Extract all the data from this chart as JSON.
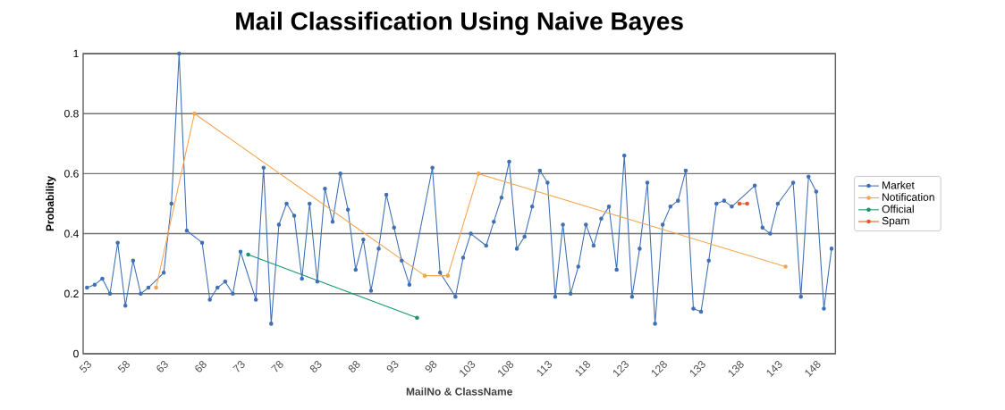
{
  "chart_data": {
    "type": "line",
    "title": "Mail Classification Using Naive Bayes",
    "xlabel": "MailNo & ClassName",
    "ylabel": "Probability",
    "categories": [
      "53",
      null,
      null,
      null,
      null,
      "58",
      null,
      null,
      null,
      null,
      "63",
      null,
      null,
      null,
      null,
      "68",
      null,
      null,
      null,
      null,
      "73",
      null,
      null,
      null,
      null,
      "78",
      null,
      null,
      null,
      null,
      "83",
      null,
      null,
      null,
      null,
      "88",
      null,
      null,
      null,
      null,
      "93",
      null,
      null,
      null,
      null,
      "98",
      null,
      null,
      null,
      null,
      "103",
      null,
      null,
      null,
      null,
      "108",
      null,
      null,
      null,
      null,
      "113",
      null,
      null,
      null,
      null,
      "118",
      null,
      null,
      null,
      null,
      "123",
      null,
      null,
      null,
      null,
      "128",
      null,
      null,
      null,
      null,
      "133",
      null,
      null,
      null,
      null,
      "138",
      null,
      null,
      null,
      null,
      "143",
      null,
      null,
      null,
      null,
      "148",
      null,
      null
    ],
    "series": [
      {
        "name": "Market",
        "color": "#3f6fb5",
        "values": [
          0.22,
          0.23,
          0.25,
          0.2,
          0.37,
          0.16,
          0.31,
          0.2,
          0.22,
          null,
          0.27,
          0.5,
          1.0,
          0.41,
          null,
          0.37,
          0.18,
          0.22,
          0.24,
          0.2,
          0.34,
          null,
          0.18,
          0.62,
          0.1,
          0.43,
          0.5,
          0.46,
          0.25,
          0.5,
          0.24,
          0.55,
          0.44,
          0.6,
          0.48,
          0.28,
          0.38,
          0.21,
          0.35,
          0.53,
          0.42,
          0.31,
          0.23,
          null,
          null,
          0.62,
          0.27,
          null,
          0.19,
          0.32,
          0.4,
          null,
          0.36,
          0.44,
          0.52,
          0.64,
          0.35,
          0.39,
          0.49,
          0.61,
          0.57,
          0.19,
          0.43,
          0.2,
          0.29,
          0.43,
          0.36,
          0.45,
          0.49,
          0.28,
          0.66,
          0.19,
          0.35,
          0.57,
          0.1,
          0.43,
          0.49,
          0.51,
          0.61,
          0.15,
          0.14,
          0.31,
          0.5,
          0.51,
          0.49,
          null,
          null,
          0.56,
          0.42,
          0.4,
          0.5,
          null,
          0.57,
          0.19,
          0.59,
          0.54,
          0.15,
          0.35
        ]
      },
      {
        "name": "Notification",
        "color": "#f5a34f",
        "values": [
          null,
          null,
          null,
          null,
          null,
          null,
          null,
          null,
          null,
          0.22,
          null,
          null,
          null,
          null,
          0.8,
          null,
          null,
          null,
          null,
          null,
          null,
          null,
          null,
          null,
          null,
          null,
          null,
          null,
          null,
          null,
          null,
          null,
          null,
          null,
          null,
          null,
          null,
          null,
          null,
          null,
          null,
          null,
          null,
          null,
          0.26,
          null,
          null,
          0.26,
          null,
          null,
          null,
          0.6,
          null,
          null,
          null,
          null,
          null,
          null,
          null,
          null,
          null,
          null,
          null,
          null,
          null,
          null,
          null,
          null,
          null,
          null,
          null,
          null,
          null,
          null,
          null,
          null,
          null,
          null,
          null,
          null,
          null,
          null,
          null,
          null,
          null,
          null,
          null,
          null,
          null,
          null,
          null,
          0.29,
          null,
          null,
          null,
          null,
          null,
          null
        ]
      },
      {
        "name": "Official",
        "color": "#16956e",
        "values": [
          null,
          null,
          null,
          null,
          null,
          null,
          null,
          null,
          null,
          null,
          null,
          null,
          null,
          null,
          null,
          null,
          null,
          null,
          null,
          null,
          null,
          0.33,
          null,
          null,
          null,
          null,
          null,
          null,
          null,
          null,
          null,
          null,
          null,
          null,
          null,
          null,
          null,
          null,
          null,
          null,
          null,
          null,
          null,
          0.12,
          null,
          null,
          null,
          null,
          null,
          null,
          null,
          null,
          null,
          null,
          null,
          null,
          null,
          null,
          null,
          null,
          null,
          null,
          null,
          null,
          null,
          null,
          null,
          null,
          null,
          null,
          null,
          null,
          null,
          null,
          null,
          null,
          null,
          null,
          null,
          null,
          null,
          null,
          null,
          null,
          null,
          null,
          null,
          null,
          null,
          null,
          null,
          null,
          null,
          null,
          null,
          null,
          null,
          null
        ]
      },
      {
        "name": "Spam",
        "color": "#e2582b",
        "values": [
          null,
          null,
          null,
          null,
          null,
          null,
          null,
          null,
          null,
          null,
          null,
          null,
          null,
          null,
          null,
          null,
          null,
          null,
          null,
          null,
          null,
          null,
          null,
          null,
          null,
          null,
          null,
          null,
          null,
          null,
          null,
          null,
          null,
          null,
          null,
          null,
          null,
          null,
          null,
          null,
          null,
          null,
          null,
          null,
          null,
          null,
          null,
          null,
          null,
          null,
          null,
          null,
          null,
          null,
          null,
          null,
          null,
          null,
          null,
          null,
          null,
          null,
          null,
          null,
          null,
          null,
          null,
          null,
          null,
          null,
          null,
          null,
          null,
          null,
          null,
          null,
          null,
          null,
          null,
          null,
          null,
          null,
          null,
          null,
          null,
          0.5,
          0.5,
          null,
          null,
          null,
          null,
          null,
          null,
          null,
          null,
          null,
          null,
          null
        ]
      }
    ],
    "ylim": [
      0,
      1
    ],
    "yticks": [
      0,
      0.2,
      0.4,
      0.6,
      0.8,
      1
    ],
    "grid": "y",
    "legend": "right",
    "marker": "circle"
  }
}
